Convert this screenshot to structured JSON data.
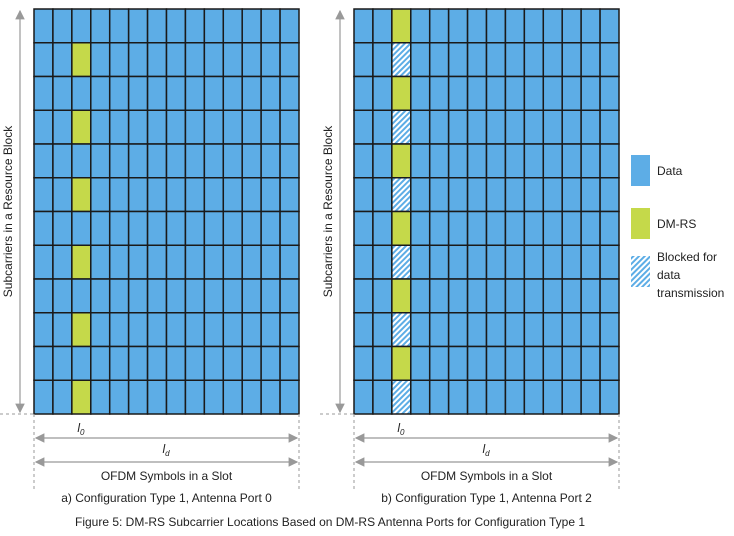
{
  "colors": {
    "data": "#5DADE6",
    "dmrs": "#C5D94A",
    "grid": "#1a1a1a",
    "arrow": "#999999"
  },
  "grid": {
    "rows": 12,
    "cols": 14
  },
  "panels": [
    {
      "id": "a",
      "y_axis_label": "Subcarriers in a Resource Block",
      "x_axis_label": "OFDM Symbols in a Slot",
      "l0_label": "l",
      "l0_sub": "0",
      "ld_label": "l",
      "ld_sub": "d",
      "caption": "a) Configuration Type 1, Antenna Port 0",
      "dmrs_col": 2,
      "dmrs_rows": [
        1,
        3,
        5,
        7,
        9,
        11
      ],
      "blocked_rows": []
    },
    {
      "id": "b",
      "y_axis_label": "Subcarriers in a Resource Block",
      "x_axis_label": "OFDM Symbols in a Slot",
      "l0_label": "l",
      "l0_sub": "0",
      "ld_label": "l",
      "ld_sub": "d",
      "caption": "b) Configuration Type 1, Antenna Port 2",
      "dmrs_col": 2,
      "dmrs_rows": [
        0,
        2,
        4,
        6,
        8,
        10
      ],
      "blocked_rows": [
        1,
        3,
        5,
        7,
        9,
        11
      ]
    }
  ],
  "legend": [
    {
      "type": "data",
      "label": [
        "Data"
      ]
    },
    {
      "type": "dmrs",
      "label": [
        "DM-RS"
      ]
    },
    {
      "type": "blocked",
      "label": [
        "Blocked for",
        "data",
        "transmission"
      ]
    }
  ],
  "figure_caption": "Figure 5: DM-RS Subcarrier Locations Based on DM-RS Antenna Ports for Configuration Type 1"
}
